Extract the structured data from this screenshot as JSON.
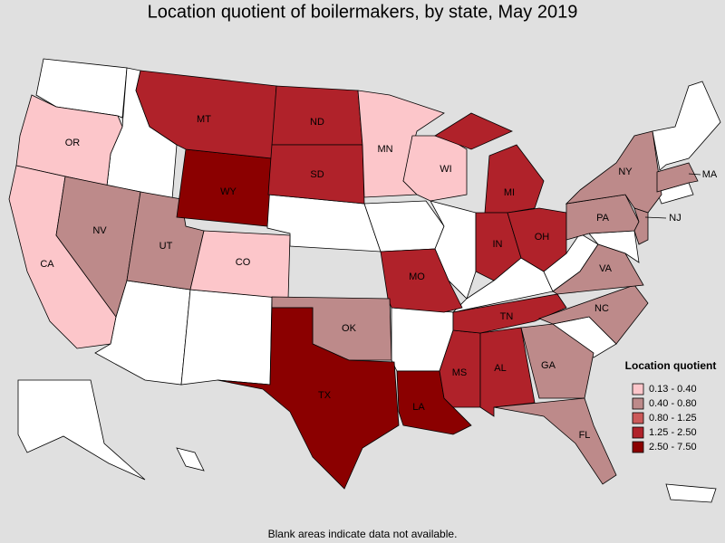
{
  "title": "Location quotient of boilermakers, by state, May 2019",
  "note": "Blank areas indicate data not available.",
  "legend": {
    "title": "Location quotient",
    "items": [
      {
        "label": "0.13 - 0.40",
        "color": "#fcc6ca"
      },
      {
        "label": "0.40 - 0.80",
        "color": "#bd8a8a"
      },
      {
        "label": "0.80 - 1.25",
        "color": "#cc5a5a"
      },
      {
        "label": "1.25 - 2.50",
        "color": "#b0222a"
      },
      {
        "label": "2.50 - 7.50",
        "color": "#8b0000"
      }
    ]
  },
  "states": [
    {
      "label": "OR",
      "color": "#fcc6ca"
    },
    {
      "label": "CA",
      "color": "#fcc6ca"
    },
    {
      "label": "NV",
      "color": "#bd8a8a"
    },
    {
      "label": "UT",
      "color": "#bd8a8a"
    },
    {
      "label": "CO",
      "color": "#fcc6ca"
    },
    {
      "label": "WY",
      "color": "#8b0000"
    },
    {
      "label": "MT",
      "color": "#b0222a"
    },
    {
      "label": "ND",
      "color": "#b0222a"
    },
    {
      "label": "SD",
      "color": "#b0222a"
    },
    {
      "label": "MN",
      "color": "#fcc6ca"
    },
    {
      "label": "WI",
      "color": "#fcc6ca"
    },
    {
      "label": "MI",
      "color": "#b0222a"
    },
    {
      "label": "IN",
      "color": "#b0222a"
    },
    {
      "label": "OH",
      "color": "#b0222a"
    },
    {
      "label": "MO",
      "color": "#b0222a"
    },
    {
      "label": "OK",
      "color": "#bd8a8a"
    },
    {
      "label": "TX",
      "color": "#8b0000"
    },
    {
      "label": "LA",
      "color": "#8b0000"
    },
    {
      "label": "MS",
      "color": "#b0222a"
    },
    {
      "label": "AL",
      "color": "#b0222a"
    },
    {
      "label": "TN",
      "color": "#b0222a"
    },
    {
      "label": "GA",
      "color": "#bd8a8a"
    },
    {
      "label": "FL",
      "color": "#bd8a8a"
    },
    {
      "label": "NC",
      "color": "#bd8a8a"
    },
    {
      "label": "VA",
      "color": "#bd8a8a"
    },
    {
      "label": "PA",
      "color": "#bd8a8a"
    },
    {
      "label": "NY",
      "color": "#bd8a8a"
    },
    {
      "label": "NJ",
      "color": "#bd8a8a"
    },
    {
      "label": "MA",
      "color": "#bd8a8a"
    }
  ]
}
